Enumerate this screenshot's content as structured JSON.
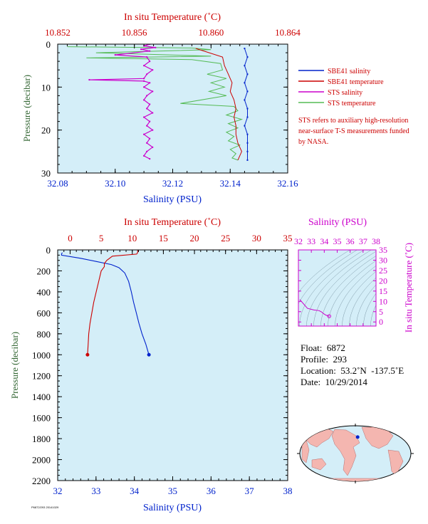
{
  "colors": {
    "plot_bg": "#d4eef8",
    "salinity": "#0022cc",
    "temperature": "#cc0000",
    "sts_salinity": "#cc00cc",
    "sts_temperature": "#55bb55",
    "map_ocean": "#d4eef8",
    "map_land": "#f4b6b0",
    "ts_axis": "#cc00cc",
    "pressure_axis": "#336633"
  },
  "chart_data": [
    {
      "id": "near-surface",
      "type": "line",
      "top_axis_label": "In situ Temperature (˚C)",
      "bottom_axis_label": "Salinity (PSU)",
      "left_axis_label": "Pressure (decibar)",
      "temperature_ticks": [
        "10.852",
        "10.856",
        "10.860",
        "10.864"
      ],
      "temperature_range": [
        10.852,
        10.864
      ],
      "salinity_ticks": [
        "32.08",
        "32.10",
        "32.12",
        "32.14",
        "32.16"
      ],
      "salinity_range": [
        32.08,
        32.16
      ],
      "pressure_ticks": [
        "0",
        "10",
        "20",
        "30"
      ],
      "pressure_range": [
        0,
        30
      ],
      "series": [
        {
          "name": "SBE41 salinity",
          "axis": "salinity",
          "color": "#0022cc",
          "points": [
            [
              32.145,
              1
            ],
            [
              32.146,
              3
            ],
            [
              32.145,
              5
            ],
            [
              32.146,
              7
            ],
            [
              32.145,
              9
            ],
            [
              32.146,
              11
            ],
            [
              32.145,
              13
            ],
            [
              32.146,
              15
            ],
            [
              32.146,
              17
            ],
            [
              32.145,
              19
            ],
            [
              32.146,
              21
            ],
            [
              32.146,
              23
            ],
            [
              32.146,
              25
            ],
            [
              32.146,
              27
            ]
          ]
        },
        {
          "name": "SBE41 temperature",
          "axis": "temperature",
          "color": "#cc0000",
          "points": [
            [
              10.8592,
              1
            ],
            [
              10.8606,
              3
            ],
            [
              10.8607,
              5
            ],
            [
              10.8609,
              7
            ],
            [
              10.8611,
              9
            ],
            [
              10.861,
              11
            ],
            [
              10.8612,
              13
            ],
            [
              10.8613,
              15
            ],
            [
              10.8612,
              17
            ],
            [
              10.8613,
              19
            ],
            [
              10.8613,
              21
            ],
            [
              10.8614,
              23
            ],
            [
              10.8616,
              25
            ],
            [
              10.8614,
              27
            ]
          ]
        },
        {
          "name": "STS salinity",
          "axis": "salinity",
          "color": "#cc00cc",
          "points": [
            [
              32.112,
              0
            ],
            [
              32.11,
              0.4
            ],
            [
              32.114,
              0.8
            ],
            [
              32.109,
              1.2
            ],
            [
              32.112,
              1.6
            ],
            [
              32.1,
              2.5
            ],
            [
              32.111,
              3
            ],
            [
              32.112,
              4
            ],
            [
              32.11,
              5
            ],
            [
              32.113,
              6
            ],
            [
              32.111,
              7
            ],
            [
              32.11,
              8
            ],
            [
              32.091,
              8.3
            ],
            [
              32.11,
              8.6
            ],
            [
              32.112,
              9
            ],
            [
              32.11,
              10
            ],
            [
              32.113,
              11
            ],
            [
              32.111,
              12
            ],
            [
              32.11,
              13
            ],
            [
              32.112,
              14
            ],
            [
              32.111,
              15
            ],
            [
              32.113,
              16
            ],
            [
              32.11,
              17
            ],
            [
              32.112,
              18
            ],
            [
              32.111,
              19
            ],
            [
              32.113,
              20
            ],
            [
              32.11,
              21
            ],
            [
              32.112,
              22
            ],
            [
              32.111,
              23
            ],
            [
              32.113,
              24
            ],
            [
              32.111,
              25
            ],
            [
              32.11,
              26
            ],
            [
              32.112,
              26.7
            ]
          ]
        },
        {
          "name": "STS temperature",
          "axis": "temperature",
          "color": "#55bb55",
          "points": [
            [
              10.8525,
              0.6
            ],
            [
              10.859,
              0.9
            ],
            [
              10.86,
              1.3
            ],
            [
              10.854,
              2
            ],
            [
              10.86,
              2.8
            ],
            [
              10.8535,
              3.2
            ],
            [
              10.859,
              3.6
            ],
            [
              10.8605,
              4.5
            ],
            [
              10.8606,
              6
            ],
            [
              10.8598,
              7
            ],
            [
              10.8608,
              8
            ],
            [
              10.86,
              9
            ],
            [
              10.8607,
              10
            ],
            [
              10.8599,
              11
            ],
            [
              10.8608,
              12
            ],
            [
              10.8584,
              13.8
            ],
            [
              10.8612,
              14.5
            ],
            [
              10.8614,
              15.5
            ],
            [
              10.8608,
              16.5
            ],
            [
              10.8616,
              17.5
            ],
            [
              10.8609,
              18.5
            ],
            [
              10.8614,
              19.5
            ],
            [
              10.8608,
              20.5
            ],
            [
              10.8612,
              21.5
            ],
            [
              10.8609,
              22.5
            ],
            [
              10.8615,
              23.5
            ],
            [
              10.861,
              24.5
            ],
            [
              10.8613,
              25.5
            ],
            [
              10.8611,
              26.5
            ],
            [
              10.8614,
              27
            ]
          ]
        }
      ]
    },
    {
      "id": "full-profile",
      "type": "line",
      "top_axis_label": "In situ Temperature (˚C)",
      "bottom_axis_label": "Salinity (PSU)",
      "left_axis_label": "Pressure (decibar)",
      "temperature_ticks": [
        "0",
        "5",
        "10",
        "15",
        "20",
        "25",
        "30",
        "35"
      ],
      "temperature_range": [
        -2,
        35
      ],
      "salinity_ticks": [
        "32",
        "33",
        "34",
        "35",
        "36",
        "37",
        "38"
      ],
      "salinity_range": [
        32,
        38
      ],
      "pressure_ticks": [
        "0",
        "200",
        "400",
        "600",
        "800",
        "1000",
        "1200",
        "1400",
        "1600",
        "1800",
        "2000",
        "2200"
      ],
      "pressure_range": [
        0,
        2200
      ],
      "series": [
        {
          "name": "Salinity",
          "axis": "salinity",
          "color": "#0022cc",
          "points": [
            [
              32.12,
              25
            ],
            [
              32.1,
              40
            ],
            [
              32.1,
              50
            ],
            [
              32.6,
              80
            ],
            [
              33.0,
              110
            ],
            [
              33.4,
              140
            ],
            [
              33.6,
              170
            ],
            [
              33.75,
              220
            ],
            [
              33.85,
              300
            ],
            [
              33.92,
              400
            ],
            [
              33.98,
              500
            ],
            [
              34.05,
              600
            ],
            [
              34.12,
              700
            ],
            [
              34.2,
              800
            ],
            [
              34.3,
              900
            ],
            [
              34.38,
              1000
            ]
          ]
        },
        {
          "name": "Temperature",
          "axis": "temperature",
          "color": "#cc0000",
          "points": [
            [
              10.86,
              0
            ],
            [
              10.86,
              25
            ],
            [
              10.7,
              40
            ],
            [
              6.8,
              60
            ],
            [
              5.9,
              100
            ],
            [
              5.5,
              130
            ],
            [
              5.5,
              160
            ],
            [
              5.0,
              200
            ],
            [
              4.6,
              300
            ],
            [
              4.2,
              400
            ],
            [
              3.8,
              500
            ],
            [
              3.5,
              600
            ],
            [
              3.2,
              700
            ],
            [
              3.0,
              800
            ],
            [
              2.9,
              900
            ],
            [
              2.8,
              1000
            ]
          ]
        }
      ]
    },
    {
      "id": "ts-diagram",
      "type": "line",
      "top_axis_label": "Salinity (PSU)",
      "right_axis_label": "In situ Temperature (˚C)",
      "salinity_ticks": [
        "32",
        "33",
        "34",
        "35",
        "36",
        "37",
        "38"
      ],
      "salinity_range": [
        32,
        38
      ],
      "temperature_ticks": [
        "0",
        "5",
        "10",
        "15",
        "20",
        "25",
        "30",
        "35"
      ],
      "temperature_range": [
        -2,
        35
      ],
      "series": [
        {
          "name": "T-S",
          "color": "#cc00cc",
          "points": [
            [
              32.1,
              10.86
            ],
            [
              32.12,
              10.8
            ],
            [
              32.7,
              6.6
            ],
            [
              33.2,
              5.8
            ],
            [
              33.6,
              5.5
            ],
            [
              33.8,
              4.8
            ],
            [
              33.95,
              4.0
            ],
            [
              34.1,
              3.4
            ],
            [
              34.25,
              3.0
            ],
            [
              34.38,
              2.8
            ]
          ]
        }
      ]
    }
  ],
  "legend": {
    "items": [
      {
        "label": "SBE41 salinity",
        "color": "#0022cc"
      },
      {
        "label": "SBE41 temperature",
        "color": "#cc0000"
      },
      {
        "label": "STS salinity",
        "color": "#cc00cc"
      },
      {
        "label": "STS temperature",
        "color": "#55bb55"
      }
    ],
    "note": "STS refers to auxiliary high-resolution near-surface T-S measurements funded by NASA."
  },
  "float_info": {
    "float": "Float:  6872",
    "profile": "Profile:  293",
    "location": "Location:  53.2˚N  -137.5˚E",
    "date": "Date:  10/29/2014"
  },
  "map": {
    "marker": {
      "lat": 53.2,
      "lon": -137.5
    },
    "marker_color": "#0022cc"
  },
  "footer_code": "P6872/293   20141029"
}
